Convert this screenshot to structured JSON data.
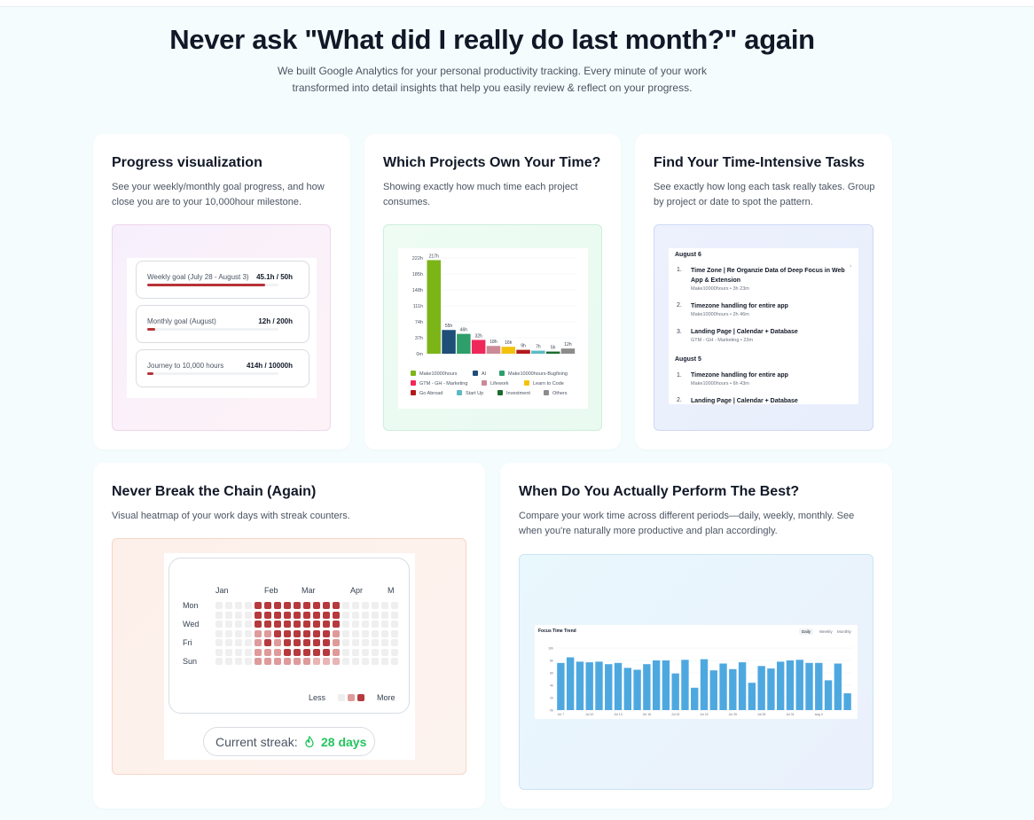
{
  "hero": {
    "title": "Never ask \"What did I really do last month?\" again",
    "subtitle": "We built Google Analytics for your personal productivity tracking. Every minute of your work transformed into detail insights that help you easily review & reflect on your progress."
  },
  "cards": {
    "progress": {
      "title": "Progress visualization",
      "desc": "See your weekly/monthly goal progress, and how close you are to your 10,000hour milestone.",
      "goals": [
        {
          "label": "Weekly goal (July 28 - August 3)",
          "value": "45.1h / 50h",
          "progress": 0.9
        },
        {
          "label": "Monthly goal (August)",
          "value": "12h / 200h",
          "progress": 0.06
        },
        {
          "label": "Journey to 10,000 hours",
          "value": "414h / 10000h",
          "progress": 0.04
        }
      ]
    },
    "projects": {
      "title": "Which Projects Own Your Time?",
      "desc": "Showing exactly how much time each project consumes."
    },
    "tasks": {
      "title": "Find Your Time-Intensive Tasks",
      "desc": "See exactly how long each task really takes. Group by project or date to spot the pattern.",
      "groups": [
        {
          "date": "August 6",
          "items": [
            {
              "num": "1.",
              "title": "Time Zone | Re Organzie Data of Deep Focus in Web App & Extension",
              "meta": "Make10000hours • 3h 23m"
            },
            {
              "num": "2.",
              "title": "Timezone handling for entire app",
              "meta": "Make10000hours • 2h 46m"
            },
            {
              "num": "3.",
              "title": "Landing Page | Calendar + Database",
              "meta": "GTM - GH - Marketing • 23m"
            }
          ]
        },
        {
          "date": "August 5",
          "items": [
            {
              "num": "1.",
              "title": "Timezone handling for entire app",
              "meta": "Make10000hours • 6h 43m"
            },
            {
              "num": "2.",
              "title": "Landing Page | Calendar + Database",
              "meta": ""
            }
          ]
        }
      ]
    },
    "chain": {
      "title": "Never Break the Chain (Again)",
      "desc": "Visual heatmap of your work days with streak counters.",
      "months": [
        "Jan",
        "Feb",
        "Mar",
        "Apr",
        "M"
      ],
      "days": [
        "Mon",
        "Wed",
        "Fri",
        "Sun"
      ],
      "less": "Less",
      "more": "More",
      "streak_label": "Current streak:",
      "streak_value": "28 days"
    },
    "perform": {
      "title": "When Do You Actually Perform The Best?",
      "desc": "Compare your work time across different periods—daily, weekly, monthly. See when you're naturally more productive and plan accordingly.",
      "chart_title": "Focus Time Trend",
      "tabs": [
        "Daily",
        "Weekly",
        "Monthly"
      ]
    }
  },
  "chart_data": [
    {
      "type": "bar",
      "categories": [
        "Make10000hours",
        "AI",
        "Make10000hours-Bugfixing",
        "GTM - GH - Marketing",
        "Lifework",
        "Learn to Code",
        "Go Abroad",
        "Start Up",
        "Investment",
        "Others"
      ],
      "values": [
        217,
        55,
        46,
        32,
        18,
        16,
        9,
        7,
        5,
        12
      ],
      "data_labels": [
        "217h",
        "55h",
        "46h",
        "32h",
        "18h",
        "16h",
        "9h",
        "7h",
        "5h",
        "12h"
      ],
      "colors": [
        "#7cb518",
        "#1f4e79",
        "#2e9e6b",
        "#f0285a",
        "#cc8a97",
        "#f4c20d",
        "#b11b1b",
        "#5bbac4",
        "#1a6b2e",
        "#8c8c8c"
      ],
      "y_ticks": [
        "0m",
        "37h",
        "74h",
        "111h",
        "148h",
        "185h",
        "222h"
      ],
      "ylim": [
        0,
        222
      ]
    },
    {
      "type": "bar",
      "title": "Focus Time Trend",
      "x_ticks": [
        "Jul 7",
        "Jul 10",
        "Jul 13",
        "Jul 16",
        "Jul 19",
        "Jul 22",
        "Jul 25",
        "Jul 28",
        "Jul 31",
        "Aug 3"
      ],
      "y_ticks": [
        "0h",
        "2h",
        "4h",
        "6h",
        "8h",
        "10h"
      ],
      "ylim": [
        0,
        10
      ],
      "values": [
        7.6,
        8.5,
        7.8,
        7.7,
        7.8,
        7.4,
        7.6,
        6.8,
        6.5,
        7.4,
        8,
        8,
        5.9,
        8.1,
        3.6,
        8.2,
        6.4,
        7.5,
        6.6,
        7.7,
        4.4,
        7.1,
        6.7,
        7.8,
        8,
        8.1,
        7.6,
        7.6,
        4.8,
        7.5,
        2.7
      ]
    }
  ],
  "colors": {
    "accent_red": "#b83238",
    "streak_green": "#22c55e",
    "trend_bar": "#4ea8e0"
  }
}
